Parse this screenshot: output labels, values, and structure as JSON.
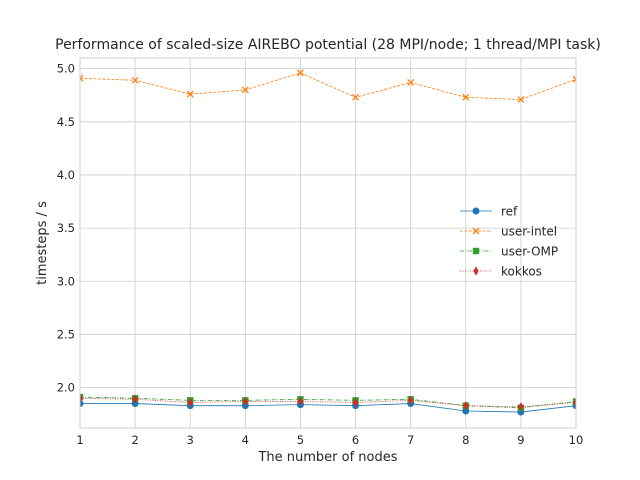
{
  "chart_data": {
    "type": "line",
    "title": "Performance of scaled-size AIREBO potential (28 MPI/node; 1 thread/MPI task)",
    "xlabel": "The number of nodes",
    "ylabel": "timesteps / s",
    "x": [
      1,
      2,
      3,
      4,
      5,
      6,
      7,
      8,
      9,
      10
    ],
    "xlim": [
      1,
      10
    ],
    "ylim": [
      1.62,
      5.1
    ],
    "xticks": [
      "1",
      "2",
      "3",
      "4",
      "5",
      "6",
      "7",
      "8",
      "9",
      "10"
    ],
    "yticks": [
      "2.0",
      "2.5",
      "3.0",
      "3.5",
      "4.0",
      "4.5",
      "5.0"
    ],
    "grid": true,
    "legend_position": "center-right",
    "series": [
      {
        "name": "ref",
        "color": "#1f77b4",
        "marker": "circle",
        "linestyle": "solid",
        "values": [
          1.85,
          1.85,
          1.83,
          1.83,
          1.84,
          1.83,
          1.85,
          1.78,
          1.77,
          1.83
        ]
      },
      {
        "name": "user-intel",
        "color": "#ff7f0e",
        "marker": "x",
        "linestyle": "dashed",
        "values": [
          4.91,
          4.89,
          4.76,
          4.8,
          4.96,
          4.73,
          4.87,
          4.73,
          4.71,
          4.9
        ]
      },
      {
        "name": "user-OMP",
        "color": "#2ca02c",
        "marker": "square",
        "linestyle": "dashdot",
        "values": [
          1.91,
          1.9,
          1.88,
          1.88,
          1.89,
          1.88,
          1.89,
          1.83,
          1.81,
          1.87
        ]
      },
      {
        "name": "kokkos",
        "color": "#d62728",
        "marker": "diamond",
        "linestyle": "dotted",
        "values": [
          1.9,
          1.89,
          1.86,
          1.87,
          1.87,
          1.86,
          1.88,
          1.83,
          1.82,
          1.86
        ]
      }
    ]
  }
}
